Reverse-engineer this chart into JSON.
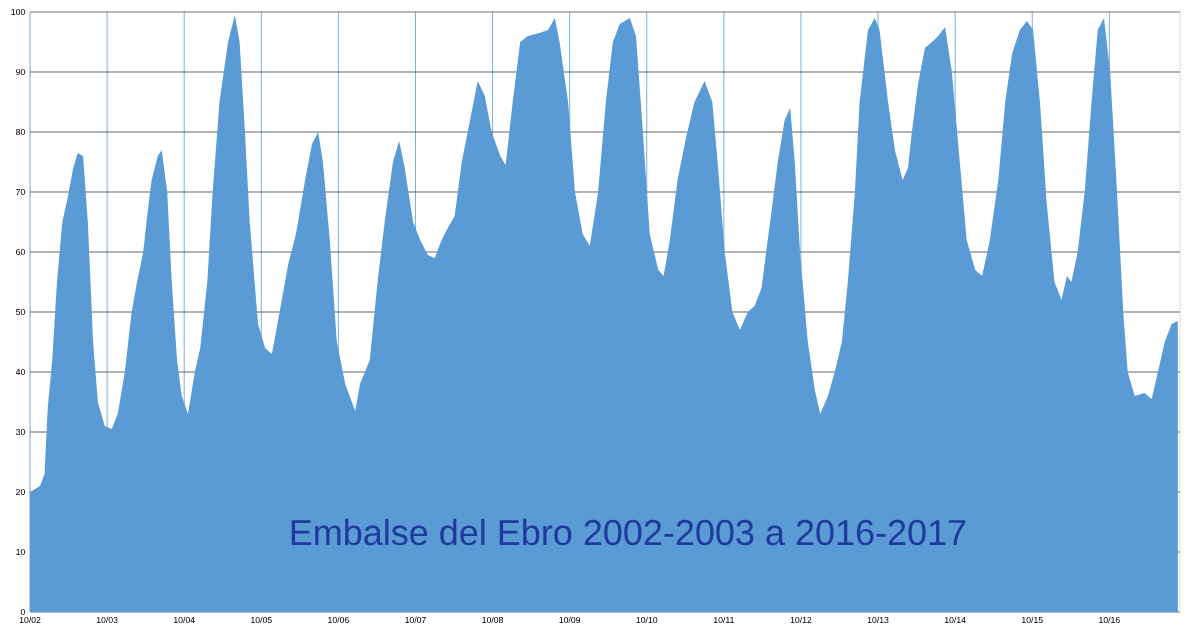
{
  "chart_data": {
    "type": "area",
    "title": "Embalse del Ebro 2002-2003 a 2016-2017",
    "color": "#5b9bd5",
    "grid": true,
    "xlim": [
      "2002-10-01",
      "2017-09-01"
    ],
    "ylim": [
      0,
      100
    ],
    "yticks": [
      0,
      10,
      20,
      30,
      40,
      50,
      60,
      70,
      80,
      90,
      100
    ],
    "xticks": [
      {
        "value": "2002-10",
        "label": "10/02"
      },
      {
        "value": "2003-10",
        "label": "10/03"
      },
      {
        "value": "2004-10",
        "label": "10/04"
      },
      {
        "value": "2005-10",
        "label": "10/05"
      },
      {
        "value": "2006-10",
        "label": "10/06"
      },
      {
        "value": "2007-10",
        "label": "10/07"
      },
      {
        "value": "2008-10",
        "label": "10/08"
      },
      {
        "value": "2009-10",
        "label": "10/09"
      },
      {
        "value": "2010-10",
        "label": "10/10"
      },
      {
        "value": "2011-10",
        "label": "10/11"
      },
      {
        "value": "2012-10",
        "label": "10/12"
      },
      {
        "value": "2013-10",
        "label": "10/13"
      },
      {
        "value": "2014-10",
        "label": "10/14"
      },
      {
        "value": "2015-10",
        "label": "10/15"
      },
      {
        "value": "2016-10",
        "label": "10/16"
      }
    ],
    "x": [
      "2002-10-01",
      "2002-11-18",
      "2002-12-09",
      "2002-12-24",
      "2003-01-15",
      "2003-02-07",
      "2003-03-02",
      "2003-03-27",
      "2003-04-23",
      "2003-05-14",
      "2003-06-09",
      "2003-07-01",
      "2003-07-26",
      "2003-08-18",
      "2003-09-20",
      "2003-10-23",
      "2003-11-21",
      "2003-12-24",
      "2004-01-26",
      "2004-02-21",
      "2004-03-20",
      "2004-04-08",
      "2004-04-29",
      "2004-05-28",
      "2004-06-16",
      "2004-07-12",
      "2004-08-03",
      "2004-08-28",
      "2004-09-20",
      "2004-10-19",
      "2004-11-21",
      "2004-12-16",
      "2005-01-19",
      "2005-02-14",
      "2005-03-16",
      "2005-04-26",
      "2005-05-28",
      "2005-06-20",
      "2005-07-15",
      "2005-08-07",
      "2005-09-16",
      "2005-10-19",
      "2005-11-21",
      "2005-12-27",
      "2006-02-07",
      "2006-03-13",
      "2006-04-26",
      "2006-05-28",
      "2006-06-27",
      "2006-07-19",
      "2006-08-21",
      "2006-09-24",
      "2006-11-03",
      "2006-12-20",
      "2007-01-12",
      "2007-02-28",
      "2007-04-04",
      "2007-05-07",
      "2007-06-16",
      "2007-07-15",
      "2007-08-11",
      "2007-09-20",
      "2007-10-23",
      "2007-11-29",
      "2008-01-01",
      "2008-02-03",
      "2008-03-02",
      "2008-04-04",
      "2008-05-07",
      "2008-06-16",
      "2008-07-22",
      "2008-08-25",
      "2008-09-27",
      "2008-11-07",
      "2008-12-02",
      "2009-01-05",
      "2009-02-10",
      "2009-03-16",
      "2009-05-10",
      "2009-06-20",
      "2009-07-22",
      "2009-08-14",
      "2009-09-24",
      "2009-10-26",
      "2009-12-02",
      "2010-01-05",
      "2010-02-14",
      "2010-03-20",
      "2010-04-23",
      "2010-05-25",
      "2010-07-12",
      "2010-08-11",
      "2010-09-13",
      "2010-10-15",
      "2010-11-25",
      "2010-12-20",
      "2011-01-19",
      "2011-02-25",
      "2011-04-04",
      "2011-05-14",
      "2011-07-01",
      "2011-08-07",
      "2011-09-02",
      "2011-10-05",
      "2011-11-11",
      "2011-12-16",
      "2012-01-23",
      "2012-02-25",
      "2012-03-27",
      "2012-05-07",
      "2012-06-13",
      "2012-07-15",
      "2012-08-11",
      "2012-09-02",
      "2012-09-27",
      "2012-11-03",
      "2012-12-06",
      "2013-01-01",
      "2013-02-07",
      "2013-03-09",
      "2013-04-12",
      "2013-05-10",
      "2013-06-13",
      "2013-07-05",
      "2013-08-14",
      "2013-09-16",
      "2013-10-08",
      "2013-11-18",
      "2013-12-20",
      "2014-01-26",
      "2014-02-21",
      "2014-03-09",
      "2014-04-08",
      "2014-05-10",
      "2014-06-13",
      "2014-07-12",
      "2014-08-14",
      "2014-09-16",
      "2014-10-23",
      "2014-11-25",
      "2015-01-05",
      "2015-02-07",
      "2015-03-13",
      "2015-04-23",
      "2015-05-25",
      "2015-06-27",
      "2015-08-03",
      "2015-09-06",
      "2015-10-05",
      "2015-11-07",
      "2015-12-09",
      "2016-01-15",
      "2016-02-18",
      "2016-03-13",
      "2016-04-04",
      "2016-05-03",
      "2016-06-06",
      "2016-07-08",
      "2016-08-07",
      "2016-09-06",
      "2016-10-05",
      "2016-11-07",
      "2016-12-06",
      "2016-12-27",
      "2017-01-30",
      "2017-03-16",
      "2017-04-19",
      "2017-05-18",
      "2017-06-20",
      "2017-07-22",
      "2017-08-21"
    ],
    "values": [
      20,
      21,
      23,
      34,
      42,
      55,
      65,
      69,
      74,
      76.5,
      76,
      65,
      45,
      35,
      31,
      30.5,
      33,
      40,
      50,
      55,
      60,
      66,
      72,
      76,
      77,
      70,
      55,
      42,
      36,
      33,
      40,
      44,
      55,
      70,
      85,
      95,
      99.5,
      95,
      80,
      65,
      48,
      44,
      43,
      50,
      58,
      63,
      72,
      78,
      80,
      75,
      62,
      45,
      38,
      33.5,
      38,
      42,
      55,
      65,
      75,
      78.5,
      74,
      65,
      62,
      59.5,
      59,
      62,
      64,
      66,
      75,
      82,
      88.5,
      86,
      80,
      76,
      74.5,
      85,
      95,
      96,
      96.5,
      97,
      99,
      95,
      85,
      70,
      63,
      61,
      70,
      85,
      95,
      98,
      99,
      96,
      80,
      63,
      57,
      56,
      62,
      72,
      79,
      85,
      88.5,
      85,
      75,
      60,
      50,
      47,
      50,
      51,
      54,
      65,
      75,
      82,
      84,
      75,
      60,
      45,
      37,
      33,
      36,
      40,
      45,
      55,
      70,
      85,
      97,
      99,
      97,
      85,
      77,
      72,
      74,
      80,
      88,
      94,
      95,
      96,
      97.5,
      90,
      75,
      62,
      57,
      56,
      62,
      72,
      85,
      93,
      97,
      98.5,
      97,
      85,
      68,
      55,
      52,
      56,
      55,
      60,
      70,
      85,
      97,
      99,
      90,
      70,
      50,
      40,
      36,
      36.5,
      35.5,
      40,
      45,
      48,
      48.5
    ]
  }
}
